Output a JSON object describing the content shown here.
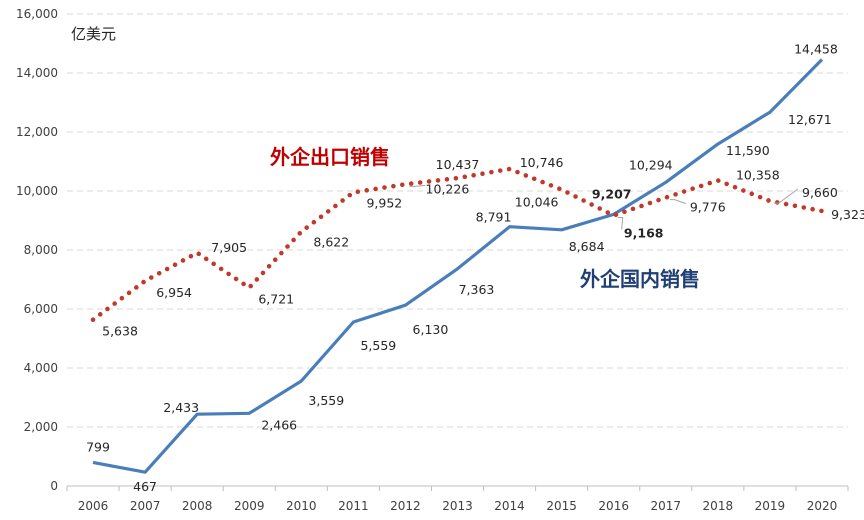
{
  "chart_data": {
    "type": "line",
    "unit_label": "亿美元",
    "categories": [
      "2006",
      "2007",
      "2008",
      "2009",
      "2010",
      "2011",
      "2012",
      "2013",
      "2014",
      "2015",
      "2016",
      "2017",
      "2018",
      "2019",
      "2020"
    ],
    "ylim": [
      0,
      16000
    ],
    "yticks": [
      0,
      2000,
      4000,
      6000,
      8000,
      10000,
      12000,
      14000,
      16000
    ],
    "ytick_labels": [
      "0",
      "2,000",
      "4,000",
      "6,000",
      "8,000",
      "10,000",
      "12,000",
      "14,000",
      "16,000"
    ],
    "grid": true,
    "series": [
      {
        "name": "外企国内销售",
        "style": "solid",
        "color": "#4a7ebb",
        "label_color": "#1f3f75",
        "values": [
          799,
          467,
          2433,
          2466,
          3559,
          5559,
          6130,
          7363,
          8791,
          8684,
          9207,
          10294,
          11590,
          12671,
          14458
        ],
        "value_labels": [
          "799",
          "467",
          "2,433",
          "2,466",
          "3,559",
          "5,559",
          "6,130",
          "7,363",
          "8,791",
          "8,684",
          "9,207",
          "10,294",
          "11,590",
          "12,671",
          "14,458"
        ],
        "highlight_color": "#4a7ebb"
      },
      {
        "name": "外企出口销售",
        "style": "dotted",
        "color": "#c0392b",
        "label_color": "#c00000",
        "values": [
          5638,
          6954,
          7905,
          6721,
          8622,
          9952,
          10226,
          10437,
          10746,
          10046,
          9168,
          9776,
          10358,
          9660,
          9323
        ],
        "value_labels": [
          "5,638",
          "6,954",
          "7,905",
          "6,721",
          "8,622",
          "9,952",
          "10,226",
          "10,437",
          "10,746",
          "10,046",
          "9,168",
          "9,776",
          "10,358",
          "9,660",
          "9,323"
        ],
        "highlight_color": "#c00000"
      }
    ]
  }
}
